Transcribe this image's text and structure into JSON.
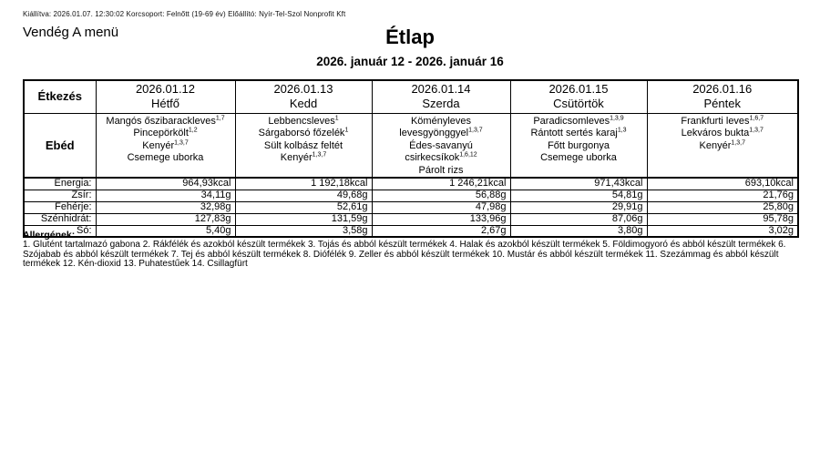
{
  "meta_line": "Kiállítva: 2026.01.07. 12:30:02 Korcsoport: Felnőtt (19-69 év) Előállító: Nyír-Tel-Szol Nonprofit Kft",
  "menu_name": "Vendég A menü",
  "title": "Étlap",
  "date_range": "2026. január 12 - 2026. január 16",
  "table": {
    "corner_header": "Étkezés",
    "meal_row_label": "Ebéd",
    "nutrition_labels": [
      "Energia:",
      "Zsír:",
      "Fehérje:",
      "Szénhidrát:",
      "Só:"
    ],
    "days": [
      {
        "date": "2026.01.12",
        "weekday": "Hétfő",
        "items": [
          {
            "name": "Mangós őszibarackleves",
            "allergens": "1,7"
          },
          {
            "name": "Pincepörkölt",
            "allergens": "1,2"
          },
          {
            "name": "Kenyér",
            "allergens": "1,3,7"
          },
          {
            "name": "Csemege uborka",
            "allergens": ""
          }
        ],
        "nutrition": [
          "964,93kcal",
          "34,11g",
          "32,98g",
          "127,83g",
          "5,40g"
        ]
      },
      {
        "date": "2026.01.13",
        "weekday": "Kedd",
        "items": [
          {
            "name": "Lebbencsleves",
            "allergens": "1"
          },
          {
            "name": "Sárgaborsó főzelék",
            "allergens": "1"
          },
          {
            "name": "Sült kolbász feltét",
            "allergens": ""
          },
          {
            "name": "Kenyér",
            "allergens": "1,3,7"
          }
        ],
        "nutrition": [
          "1 192,18kcal",
          "49,68g",
          "52,61g",
          "131,59g",
          "3,58g"
        ]
      },
      {
        "date": "2026.01.14",
        "weekday": "Szerda",
        "items": [
          {
            "name": "Köményleves levesgyönggyel",
            "allergens": "1,3,7"
          },
          {
            "name": "Édes-savanyú csirkecsíkok",
            "allergens": "1,6,12"
          },
          {
            "name": "Párolt rizs",
            "allergens": ""
          }
        ],
        "nutrition": [
          "1 246,21kcal",
          "56,88g",
          "47,98g",
          "133,96g",
          "2,67g"
        ]
      },
      {
        "date": "2026.01.15",
        "weekday": "Csütörtök",
        "items": [
          {
            "name": "Paradicsomleves",
            "allergens": "1,3,9"
          },
          {
            "name": "Rántott sertés karaj",
            "allergens": "1,3"
          },
          {
            "name": "Főtt burgonya",
            "allergens": ""
          },
          {
            "name": "Csemege uborka",
            "allergens": ""
          }
        ],
        "nutrition": [
          "971,43kcal",
          "54,81g",
          "29,91g",
          "87,06g",
          "3,80g"
        ]
      },
      {
        "date": "2026.01.16",
        "weekday": "Péntek",
        "items": [
          {
            "name": "Frankfurti leves",
            "allergens": "1,6,7"
          },
          {
            "name": "Lekváros bukta",
            "allergens": "1,3,7"
          },
          {
            "name": "Kenyér",
            "allergens": "1,3,7"
          }
        ],
        "nutrition": [
          "693,10kcal",
          "21,76g",
          "25,80g",
          "95,78g",
          "3,02g"
        ]
      }
    ]
  },
  "allergens": {
    "heading": "Allergének:",
    "text": "1. Glutént tartalmazó gabona 2. Rákfélék és azokból készült termékek 3. Tojás és abból készült termékek 4. Halak és azokból készült termékek 5. Földimogyoró és abból készült termékek 6. Szójabab és abból készült termékek 7. Tej és abból készült termékek 8. Diófélék 9. Zeller és abból készült termékek 10. Mustár és abból készült termékek 11. Szezámmag és abból készült termékek 12. Kén-dioxid 13. Puhatestűek 14. Csillagfürt"
  }
}
